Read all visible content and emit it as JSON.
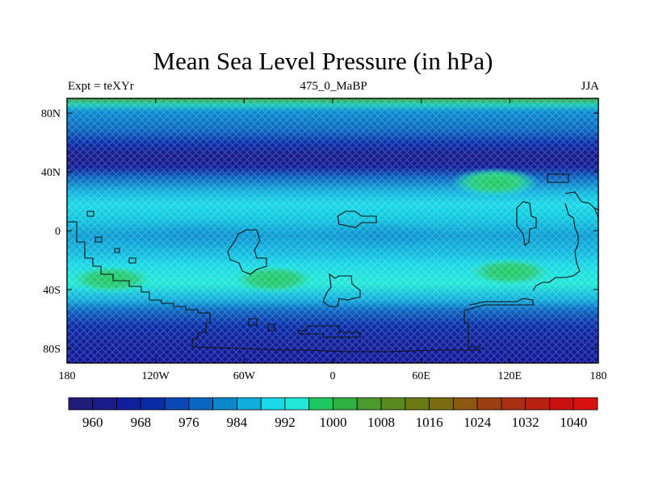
{
  "header": {
    "title": "Mean Sea Level Pressure (in hPa)",
    "left_label": "Expt = teXYr",
    "center_label": "475_0_MaBP",
    "right_label": "JJA"
  },
  "axes": {
    "y_ticks": [
      {
        "value": 80,
        "label": "80N"
      },
      {
        "value": 40,
        "label": "40N"
      },
      {
        "value": 0,
        "label": "0"
      },
      {
        "value": -40,
        "label": "40S"
      },
      {
        "value": -80,
        "label": "80S"
      }
    ],
    "x_ticks": [
      {
        "value": -180,
        "label": "180"
      },
      {
        "value": -120,
        "label": "120W"
      },
      {
        "value": -60,
        "label": "60W"
      },
      {
        "value": 0,
        "label": "0"
      },
      {
        "value": 60,
        "label": "60E"
      },
      {
        "value": 120,
        "label": "120E"
      },
      {
        "value": 180,
        "label": "180"
      }
    ]
  },
  "colorbar": {
    "colors": [
      "#201c78",
      "#1a1a8a",
      "#10209a",
      "#0a2ca8",
      "#0a48b4",
      "#0a66c0",
      "#0a88cc",
      "#10aedc",
      "#18d8e6",
      "#20e8d8",
      "#20c860",
      "#30b040",
      "#4a9a30",
      "#5a8a20",
      "#6a7a10",
      "#7a6a10",
      "#8a5810",
      "#9a4010",
      "#a83010",
      "#b82010",
      "#c81010",
      "#d81010"
    ],
    "labels": [
      "960",
      "968",
      "976",
      "984",
      "992",
      "1000",
      "1008",
      "1016",
      "1024",
      "1032",
      "1040"
    ]
  },
  "chart_data": {
    "type": "heatmap",
    "title": "Mean Sea Level Pressure (in hPa)",
    "subtitle_left": "Expt = teXYr",
    "subtitle_center": "475_0_MaBP",
    "subtitle_right": "JJA",
    "x_range": [
      -180,
      180
    ],
    "y_range": [
      -90,
      90
    ],
    "zonal_bands": [
      {
        "lat": [
          80,
          90
        ],
        "value": 1006
      },
      {
        "lat": [
          65,
          80
        ],
        "value": 980
      },
      {
        "lat": [
          45,
          65
        ],
        "value": 966
      },
      {
        "lat": [
          20,
          45
        ],
        "value": 988
      },
      {
        "lat": [
          10,
          20
        ],
        "value": 1001
      },
      {
        "lat": [
          -10,
          10
        ],
        "value": 994
      },
      {
        "lat": [
          -22,
          -10
        ],
        "value": 998
      },
      {
        "lat": [
          -45,
          -22
        ],
        "value": 1005
      },
      {
        "lat": [
          -55,
          -45
        ],
        "value": 992
      },
      {
        "lat": [
          -70,
          -55
        ],
        "value": 978
      },
      {
        "lat": [
          -90,
          -70
        ],
        "value": 968
      }
    ],
    "highs": [
      {
        "lon": -150,
        "lat": -33,
        "value": 1006
      },
      {
        "lon": -40,
        "lat": -33,
        "value": 1006
      },
      {
        "lon": 120,
        "lat": -28,
        "value": 1006
      },
      {
        "lon": 110,
        "lat": 33,
        "value": 1005
      }
    ]
  }
}
